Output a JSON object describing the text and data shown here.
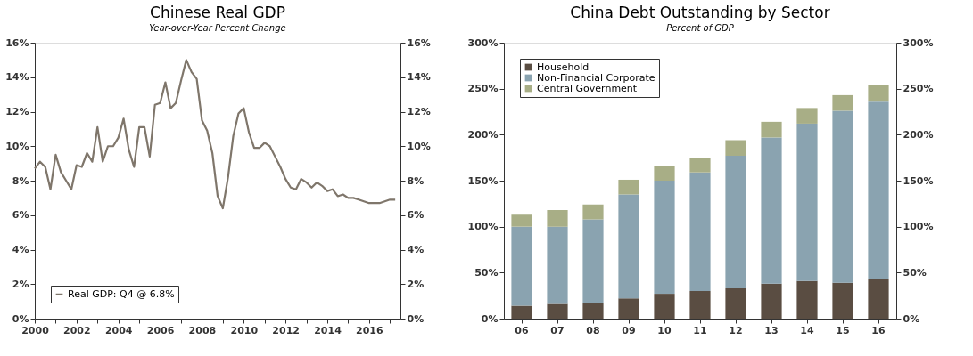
{
  "chart_data": [
    {
      "type": "line",
      "title": "Chinese Real GDP",
      "subtitle": "Year-over-Year Percent Change",
      "x": [
        2000.0,
        2000.25,
        2000.5,
        2000.75,
        2001.0,
        2001.25,
        2001.5,
        2001.75,
        2002.0,
        2002.25,
        2002.5,
        2002.75,
        2003.0,
        2003.25,
        2003.5,
        2003.75,
        2004.0,
        2004.25,
        2004.5,
        2004.75,
        2005.0,
        2005.25,
        2005.5,
        2005.75,
        2006.0,
        2006.25,
        2006.5,
        2006.75,
        2007.0,
        2007.25,
        2007.5,
        2007.75,
        2008.0,
        2008.25,
        2008.5,
        2008.75,
        2009.0,
        2009.25,
        2009.5,
        2009.75,
        2010.0,
        2010.25,
        2010.5,
        2010.75,
        2011.0,
        2011.25,
        2011.5,
        2011.75,
        2012.0,
        2012.25,
        2012.5,
        2012.75,
        2013.0,
        2013.25,
        2013.5,
        2013.75,
        2014.0,
        2014.25,
        2014.5,
        2014.75,
        2015.0,
        2015.25,
        2015.5,
        2015.75,
        2016.0,
        2016.25,
        2016.5,
        2016.75,
        2017.0,
        2017.25
      ],
      "series": [
        {
          "name": "Real GDP: Q4 @ 6.8%",
          "color": "#7f766b",
          "values": [
            8.7,
            9.1,
            8.8,
            7.5,
            9.5,
            8.5,
            8.0,
            7.5,
            8.9,
            8.8,
            9.6,
            9.1,
            11.1,
            9.1,
            10.0,
            10.0,
            10.5,
            11.6,
            9.8,
            8.8,
            11.1,
            11.1,
            9.4,
            12.4,
            12.5,
            13.7,
            12.2,
            12.5,
            13.8,
            15.0,
            14.3,
            13.9,
            11.5,
            10.9,
            9.6,
            7.1,
            6.4,
            8.2,
            10.6,
            11.9,
            12.2,
            10.8,
            9.9,
            9.9,
            10.2,
            10.0,
            9.4,
            8.8,
            8.1,
            7.6,
            7.5,
            8.1,
            7.9,
            7.6,
            7.9,
            7.7,
            7.4,
            7.5,
            7.1,
            7.2,
            7.0,
            7.0,
            6.9,
            6.8,
            6.7,
            6.7,
            6.7,
            6.8,
            6.9,
            6.9
          ]
        }
      ],
      "xlim": [
        2000,
        2017.5
      ],
      "xticks": [
        2000,
        {
          "value": 2001,
          "label": null
        },
        2002,
        {
          "value": 2003,
          "label": null
        },
        2004,
        {
          "value": 2005,
          "label": null
        },
        2006,
        {
          "value": 2007,
          "label": null
        },
        2008,
        {
          "value": 2009,
          "label": null
        },
        2010,
        {
          "value": 2011,
          "label": null
        },
        2012,
        {
          "value": 2013,
          "label": null
        },
        2014,
        {
          "value": 2015,
          "label": null
        },
        2016,
        {
          "value": 2017,
          "label": null
        }
      ],
      "ylim": [
        0,
        16
      ],
      "yticks": [
        {
          "value": 0,
          "label": "0%"
        },
        {
          "value": 2,
          "label": "2%"
        },
        {
          "value": 4,
          "label": "4%"
        },
        {
          "value": 6,
          "label": "6%"
        },
        {
          "value": 8,
          "label": "8%"
        },
        {
          "value": 10,
          "label": "10%"
        },
        {
          "value": 12,
          "label": "12%"
        },
        {
          "value": 14,
          "label": "14%"
        },
        {
          "value": 16,
          "label": "16%"
        }
      ],
      "y2lim": [
        0,
        16
      ],
      "y2ticks": [
        {
          "value": 0,
          "label": "0%"
        },
        {
          "value": 2,
          "label": "2%"
        },
        {
          "value": 4,
          "label": "4%"
        },
        {
          "value": 6,
          "label": "6%"
        },
        {
          "value": 8,
          "label": "8%"
        },
        {
          "value": 10,
          "label": "10%"
        },
        {
          "value": 12,
          "label": "12%"
        },
        {
          "value": 14,
          "label": "14%"
        },
        {
          "value": 16,
          "label": "16%"
        }
      ],
      "legend": "bottom left",
      "grid": false,
      "line_style": "solid",
      "marker": "none"
    },
    {
      "type": "bar",
      "title": "China Debt Outstanding by Sector",
      "subtitle": "Percent of GDP",
      "stacked": true,
      "categories": [
        "06",
        "07",
        "08",
        "09",
        "10",
        "11",
        "12",
        "13",
        "14",
        "15",
        "16"
      ],
      "series": [
        {
          "name": "Household",
          "color": "#5a4d42",
          "values": [
            14,
            16,
            17,
            22,
            27,
            30,
            33,
            38,
            41,
            39,
            43
          ]
        },
        {
          "name": "Non-Financial Corporate",
          "color": "#8aa3b0",
          "values": [
            86,
            84,
            91,
            113,
            123,
            129,
            144,
            159,
            171,
            187,
            193
          ]
        },
        {
          "name": "Central Government",
          "color": "#a8ae86",
          "values": [
            13,
            18,
            16,
            16,
            16,
            16,
            17,
            17,
            17,
            17,
            18
          ]
        }
      ],
      "ylim": [
        0,
        300
      ],
      "yticks": [
        {
          "value": 0,
          "label": "0%"
        },
        {
          "value": 50,
          "label": "50%"
        },
        {
          "value": 100,
          "label": "100%"
        },
        {
          "value": 150,
          "label": "150%"
        },
        {
          "value": 200,
          "label": "200%"
        },
        {
          "value": 250,
          "label": "250%"
        },
        {
          "value": 300,
          "label": "300%"
        }
      ],
      "y2lim": [
        0,
        300
      ],
      "y2ticks": [
        {
          "value": 0,
          "label": "0%"
        },
        {
          "value": 50,
          "label": "50%"
        },
        {
          "value": 100,
          "label": "100%"
        },
        {
          "value": 150,
          "label": "150%"
        },
        {
          "value": 200,
          "label": "200%"
        },
        {
          "value": 250,
          "label": "250%"
        },
        {
          "value": 300,
          "label": "300%"
        }
      ],
      "legend": "top left",
      "grid": false
    }
  ]
}
